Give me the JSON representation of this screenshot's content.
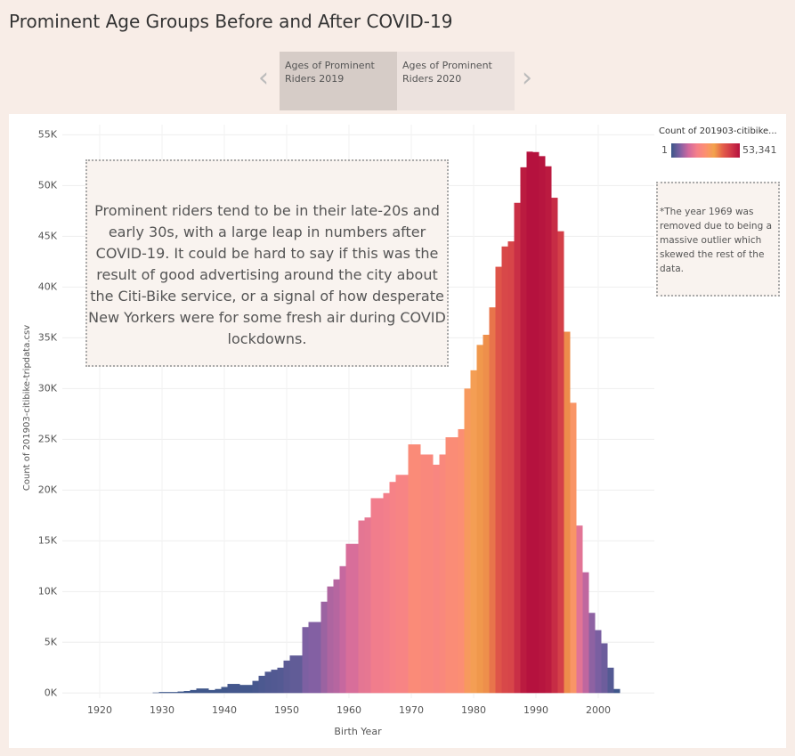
{
  "header": {
    "title": "Prominent Age Groups Before and After COVID-19"
  },
  "nav": {
    "tabs": [
      "Ages of Prominent Riders 2019",
      "Ages of Prominent Riders 2020"
    ]
  },
  "annotations": {
    "main": "Prominent riders tend to be in their late-20s and early 30s, with a large leap in numbers after COVID-19.   It could be hard to say if this was the result of good advertising around the city about the Citi-Bike service, or a signal of how desperate New Yorkers were for some fresh air during COVID lockdowns.",
    "note": "*The year 1969 was removed due to being a massive outlier which skewed the rest of the data."
  },
  "chart_data": {
    "type": "bar",
    "x_label": "Birth Year",
    "y_label": "Count of 201903-citibike-tripdata.csv",
    "legend": {
      "title": "Count of 201903-citibike...",
      "min": 1,
      "max": {
        "value": 53341,
        "label": "53,341"
      }
    },
    "color_scale": [
      "#3b5689",
      "#7f60a3",
      "#d0699e",
      "#f5808a",
      "#fc9070",
      "#f2a24c",
      "#e4604a",
      "#d03848",
      "#b5123e"
    ],
    "x": [
      1929,
      1930,
      1931,
      1932,
      1933,
      1934,
      1935,
      1936,
      1937,
      1938,
      1939,
      1940,
      1941,
      1942,
      1943,
      1944,
      1945,
      1946,
      1947,
      1948,
      1949,
      1950,
      1951,
      1952,
      1953,
      1954,
      1955,
      1956,
      1957,
      1958,
      1959,
      1960,
      1961,
      1962,
      1963,
      1964,
      1965,
      1966,
      1967,
      1968,
      1969,
      1970,
      1971,
      1972,
      1973,
      1974,
      1975,
      1976,
      1977,
      1978,
      1979,
      1980,
      1981,
      1982,
      1983,
      1984,
      1985,
      1986,
      1987,
      1988,
      1989,
      1990,
      1991,
      1992,
      1993,
      1994,
      1995,
      1996,
      1997,
      1998,
      1999,
      2000,
      2001,
      2002,
      2003
    ],
    "values": [
      50,
      100,
      100,
      100,
      150,
      200,
      300,
      450,
      450,
      300,
      400,
      600,
      900,
      900,
      800,
      800,
      1200,
      1700,
      2100,
      2300,
      2500,
      3200,
      3700,
      3700,
      6500,
      7000,
      7000,
      9000,
      10500,
      11200,
      12500,
      14700,
      14700,
      17000,
      17300,
      19200,
      19200,
      19700,
      20800,
      21500,
      21500,
      24500,
      24500,
      23500,
      23500,
      22500,
      23500,
      25200,
      25200,
      26000,
      30000,
      31800,
      34300,
      35300,
      38000,
      42000,
      44000,
      44500,
      48300,
      51800,
      53341,
      53300,
      52900,
      51900,
      48800,
      45500,
      35600,
      28600,
      16500,
      11900,
      7900,
      6200,
      4900,
      2500,
      400
    ],
    "xlim": [
      1914,
      2009
    ],
    "xticks": [
      1920,
      1930,
      1940,
      1950,
      1960,
      1970,
      1980,
      1990,
      2000
    ],
    "ylim": [
      -500,
      56000
    ],
    "yticks": [
      {
        "value": 0,
        "label": "0K"
      },
      {
        "value": 5000,
        "label": "5K"
      },
      {
        "value": 10000,
        "label": "10K"
      },
      {
        "value": 15000,
        "label": "15K"
      },
      {
        "value": 20000,
        "label": "20K"
      },
      {
        "value": 25000,
        "label": "25K"
      },
      {
        "value": 30000,
        "label": "30K"
      },
      {
        "value": 35000,
        "label": "35K"
      },
      {
        "value": 40000,
        "label": "40K"
      },
      {
        "value": 45000,
        "label": "45K"
      },
      {
        "value": 50000,
        "label": "50K"
      },
      {
        "value": 55000,
        "label": "55K"
      }
    ],
    "grid": true
  }
}
